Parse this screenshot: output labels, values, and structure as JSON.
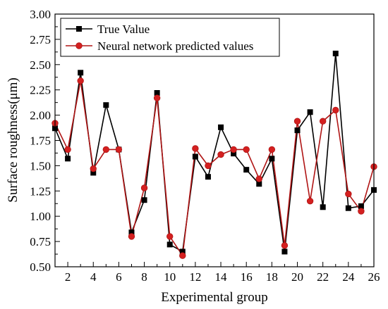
{
  "chart_data": {
    "type": "line",
    "title": "",
    "xlabel": "Experimental group",
    "ylabel": "Surface roughness(μm)",
    "xlim": [
      1,
      26
    ],
    "ylim": [
      0.5,
      3.0
    ],
    "x_ticks": [
      2,
      4,
      6,
      8,
      10,
      12,
      14,
      16,
      18,
      20,
      22,
      24,
      26
    ],
    "y_ticks": [
      "0.50",
      "0.75",
      "1.00",
      "1.25",
      "1.50",
      "1.75",
      "2.00",
      "2.25",
      "2.50",
      "2.75",
      "3.00"
    ],
    "legend_position": "top-left",
    "grid": false,
    "x": [
      1,
      2,
      3,
      4,
      5,
      6,
      7,
      8,
      9,
      10,
      11,
      12,
      13,
      14,
      15,
      16,
      17,
      18,
      19,
      20,
      21,
      22,
      23,
      24,
      25,
      26
    ],
    "series": [
      {
        "name": "True Value",
        "color": "#000000",
        "marker": "square",
        "values": [
          1.87,
          1.57,
          2.42,
          1.43,
          2.1,
          1.66,
          0.84,
          1.16,
          2.22,
          0.72,
          0.65,
          1.59,
          1.39,
          1.88,
          1.62,
          1.46,
          1.32,
          1.57,
          0.65,
          1.85,
          2.03,
          1.09,
          2.61,
          1.08,
          1.1,
          1.26
        ]
      },
      {
        "name": "Neural network predicted values",
        "color": "#b01515",
        "marker": "circle",
        "values": [
          1.92,
          1.66,
          2.34,
          1.47,
          1.66,
          1.66,
          0.8,
          1.28,
          2.17,
          0.8,
          0.61,
          1.67,
          1.5,
          1.61,
          1.66,
          1.66,
          1.37,
          1.66,
          0.71,
          1.94,
          1.15,
          1.94,
          2.05,
          1.22,
          1.05,
          1.49
        ]
      }
    ]
  }
}
